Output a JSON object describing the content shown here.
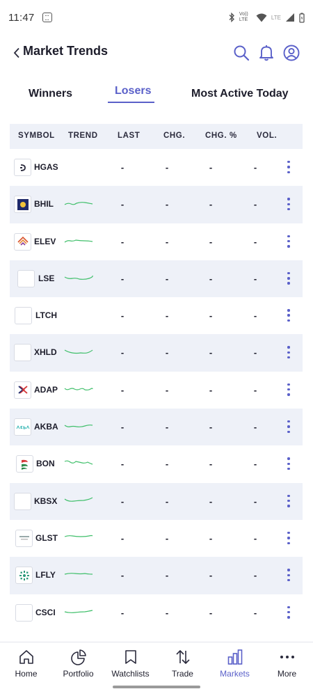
{
  "status": {
    "time": "11:47",
    "network_label": "Vo)) LTE",
    "lte_label": "LTE"
  },
  "header": {
    "title": "Market Trends",
    "icons": [
      "back-chevron-icon",
      "search-icon",
      "bell-icon",
      "profile-icon"
    ]
  },
  "tabs": [
    {
      "label": "Winners",
      "active": false
    },
    {
      "label": "Losers",
      "active": true
    },
    {
      "label": "Most Active Today",
      "active": false
    }
  ],
  "table": {
    "columns": [
      "SYMBOL",
      "TREND",
      "LAST",
      "CHG.",
      "CHG. %",
      "VOL."
    ],
    "rows": [
      {
        "symbol": "HGAS",
        "logo": "hgas-logo",
        "trend": false,
        "last": "-",
        "chg": "-",
        "chg_pct": "-",
        "vol": "-"
      },
      {
        "symbol": "BHIL",
        "logo": "bhil-logo",
        "trend": true,
        "last": "-",
        "chg": "-",
        "chg_pct": "-",
        "vol": "-"
      },
      {
        "symbol": "ELEV",
        "logo": "elev-logo",
        "trend": true,
        "last": "-",
        "chg": "-",
        "chg_pct": "-",
        "vol": "-"
      },
      {
        "symbol": "LSE",
        "logo": "blank-logo",
        "trend": true,
        "last": "-",
        "chg": "-",
        "chg_pct": "-",
        "vol": "-"
      },
      {
        "symbol": "LTCH",
        "logo": "blank-logo",
        "trend": false,
        "last": "-",
        "chg": "-",
        "chg_pct": "-",
        "vol": "-"
      },
      {
        "symbol": "XHLD",
        "logo": "blank-logo",
        "trend": true,
        "last": "-",
        "chg": "-",
        "chg_pct": "-",
        "vol": "-"
      },
      {
        "symbol": "ADAP",
        "logo": "adap-logo",
        "trend": true,
        "last": "-",
        "chg": "-",
        "chg_pct": "-",
        "vol": "-"
      },
      {
        "symbol": "AKBA",
        "logo": "akba-logo",
        "trend": true,
        "last": "-",
        "chg": "-",
        "chg_pct": "-",
        "vol": "-"
      },
      {
        "symbol": "BON",
        "logo": "bon-logo",
        "trend": true,
        "last": "-",
        "chg": "-",
        "chg_pct": "-",
        "vol": "-"
      },
      {
        "symbol": "KBSX",
        "logo": "blank-logo",
        "trend": true,
        "last": "-",
        "chg": "-",
        "chg_pct": "-",
        "vol": "-"
      },
      {
        "symbol": "GLST",
        "logo": "glst-logo",
        "trend": true,
        "last": "-",
        "chg": "-",
        "chg_pct": "-",
        "vol": "-"
      },
      {
        "symbol": "LFLY",
        "logo": "lfly-logo",
        "trend": true,
        "last": "-",
        "chg": "-",
        "chg_pct": "-",
        "vol": "-"
      },
      {
        "symbol": "CSCI",
        "logo": "blank-logo",
        "trend": true,
        "last": "-",
        "chg": "-",
        "chg_pct": "-",
        "vol": "-"
      }
    ]
  },
  "bottom_nav": [
    {
      "label": "Home",
      "icon": "home-icon",
      "active": false
    },
    {
      "label": "Portfolio",
      "icon": "portfolio-pie-icon",
      "active": false
    },
    {
      "label": "Watchlists",
      "icon": "bookmark-icon",
      "active": false
    },
    {
      "label": "Trade",
      "icon": "trade-arrows-icon",
      "active": false
    },
    {
      "label": "Markets",
      "icon": "bar-chart-icon",
      "active": true
    },
    {
      "label": "More",
      "icon": "more-dots-icon",
      "active": false
    }
  ],
  "colors": {
    "accent": "#5a60c9",
    "row_alt_bg": "#eef1f8",
    "trend_line": "#3fbf6a",
    "text": "#1d1d2b"
  }
}
